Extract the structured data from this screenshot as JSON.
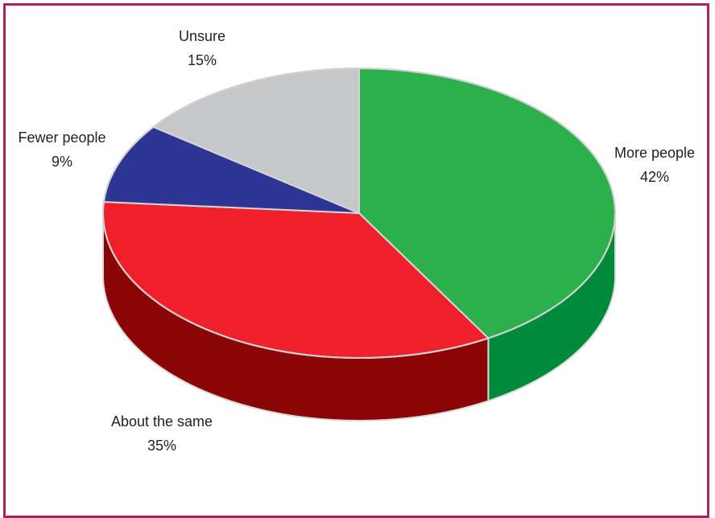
{
  "chart_data": {
    "type": "pie",
    "title": "",
    "slices": [
      {
        "label": "More people",
        "percent_label": "42%",
        "value": 42,
        "color": "#2cb04b",
        "side_color": "#008a3b"
      },
      {
        "label": "About the same",
        "percent_label": "35%",
        "value": 35,
        "color": "#ef1f2b",
        "side_color": "#8c0506"
      },
      {
        "label": "Fewer people",
        "percent_label": "9%",
        "value": 9,
        "color": "#2d3595",
        "side_color": "#1f2566"
      },
      {
        "label": "Unsure",
        "percent_label": "15%",
        "value": 15,
        "color": "#c6c7c9",
        "side_color": "#9a9b9d"
      }
    ],
    "legend": "none",
    "style": "3d-pie"
  }
}
